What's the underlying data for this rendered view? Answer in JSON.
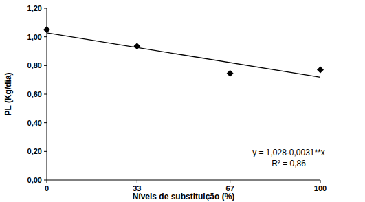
{
  "chart_data": {
    "type": "scatter",
    "x_label": "Níveis de substituição (%)",
    "y_label": "PL (Kg/dia)",
    "x": [
      0,
      33,
      67,
      100
    ],
    "xlim": [
      0,
      100
    ],
    "xticks": [
      0,
      33,
      67,
      100
    ],
    "ylim": [
      0,
      1.2
    ],
    "yticks": [
      {
        "value": 0,
        "label": "0,00"
      },
      {
        "value": 0.2,
        "label": "0,20"
      },
      {
        "value": 0.4,
        "label": "0,40"
      },
      {
        "value": 0.6,
        "label": "0,60"
      },
      {
        "value": 0.8,
        "label": "0,80"
      },
      {
        "value": 1.0,
        "label": "1,00"
      },
      {
        "value": 1.2,
        "label": "1,20"
      }
    ],
    "grid": false,
    "series": [
      {
        "type": "scatter",
        "color": "#000000",
        "marker": "diamond",
        "values": [
          1.05,
          0.935,
          0.745,
          0.77
        ]
      },
      {
        "type": "line",
        "color": "#000000",
        "line_style": "solid",
        "x": [
          0,
          100
        ],
        "values": [
          1.028,
          0.718
        ]
      }
    ],
    "annotations": [
      "y = 1,028-0,0031**x",
      "R² = 0,86"
    ]
  }
}
